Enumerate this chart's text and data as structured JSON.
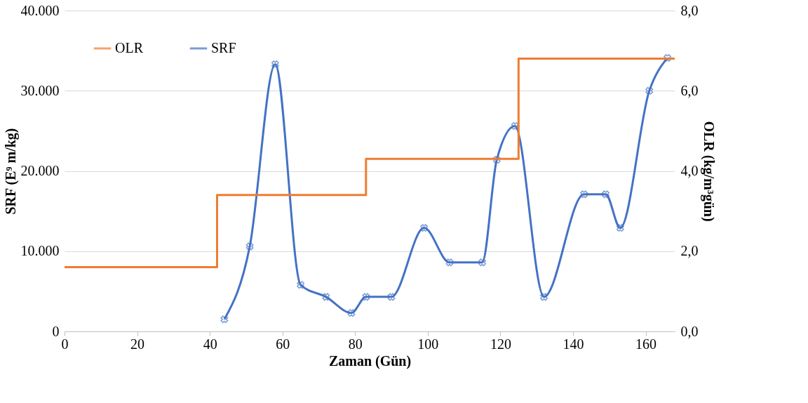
{
  "chart_data": {
    "type": "line",
    "xlabel": "Zaman (Gün)",
    "ylabel": "SRF (E⁹ m/kg)",
    "y2label": "OLR (kg/m³gün)",
    "xlim": [
      0,
      168
    ],
    "xticks": [
      0,
      20,
      40,
      60,
      80,
      100,
      120,
      140,
      160
    ],
    "ylim": [
      0,
      40000
    ],
    "yticks": [
      {
        "value": 0,
        "label": "0"
      },
      {
        "value": 10000,
        "label": "10.000"
      },
      {
        "value": 20000,
        "label": "20.000"
      },
      {
        "value": 30000,
        "label": "30.000"
      },
      {
        "value": 40000,
        "label": "40.000"
      }
    ],
    "y2lim": [
      0,
      8
    ],
    "y2ticks": [
      {
        "value": 0,
        "label": "0,0"
      },
      {
        "value": 2,
        "label": "2,0"
      },
      {
        "value": 4,
        "label": "4,0"
      },
      {
        "value": 6,
        "label": "6,0"
      },
      {
        "value": 8,
        "label": "8,0"
      }
    ],
    "grid": "y",
    "legend": "top left",
    "series": [
      {
        "name": "OLR",
        "type": "step",
        "axis": "y2",
        "color": "#ed7d31",
        "marker": "none",
        "x": [
          0,
          42,
          83,
          125,
          168
        ],
        "values": [
          1.6,
          3.4,
          4.3,
          6.8,
          6.8
        ]
      },
      {
        "name": "SRF",
        "color": "#4472c4",
        "marker": "cross",
        "x": [
          44,
          51,
          58,
          65,
          72,
          79,
          83,
          90,
          99,
          106,
          115,
          119,
          124,
          132,
          143,
          149,
          153,
          161,
          166
        ],
        "values": [
          1500,
          10600,
          33300,
          5800,
          4300,
          2300,
          4300,
          4300,
          12900,
          8600,
          8600,
          21400,
          25600,
          4300,
          17100,
          17100,
          12900,
          30000,
          34100
        ]
      }
    ]
  }
}
